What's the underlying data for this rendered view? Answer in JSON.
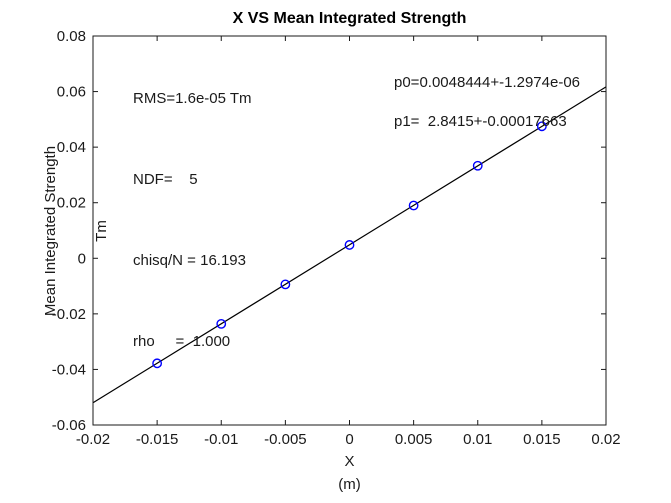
{
  "chart_data": {
    "type": "scatter",
    "title": "X VS Mean Integrated Strength",
    "xlabel": "X",
    "xlabel_unit": "(m)",
    "ylabel_line1": "Mean Integrated Strength",
    "ylabel_line2": "Tm",
    "xlim": [
      -0.02,
      0.02
    ],
    "ylim": [
      -0.06,
      0.08
    ],
    "xtick_values": [
      -0.02,
      -0.015,
      -0.01,
      -0.005,
      0,
      0.005,
      0.01,
      0.015,
      0.02
    ],
    "xtick_labels": [
      "-0.02",
      "-0.015",
      "-0.01",
      "-0.005",
      "0",
      "0.005",
      "0.01",
      "0.015",
      "0.02"
    ],
    "ytick_values": [
      -0.06,
      -0.04,
      -0.02,
      0,
      0.02,
      0.04,
      0.06,
      0.08
    ],
    "ytick_labels": [
      "-0.06",
      "-0.04",
      "-0.02",
      "0",
      "0.02",
      "0.04",
      "0.06",
      "0.08"
    ],
    "grid": false,
    "legend": false,
    "axis_color": "#1a1a1a",
    "background_color": "#ffffff",
    "series": [
      {
        "name": "measured-points",
        "marker": "open-circle",
        "marker_color": "#0000ff",
        "x": [
          -0.015,
          -0.01,
          -0.005,
          0,
          0.005,
          0.01,
          0.015
        ],
        "y": [
          -0.0378,
          -0.0236,
          -0.0094,
          0.0048,
          0.019,
          0.0333,
          0.0475
        ]
      }
    ],
    "fit_line": {
      "name": "linear-fit",
      "color": "#000000",
      "p0": 0.0048444,
      "p1": 2.8415,
      "x_start": -0.02,
      "x_end": 0.02
    },
    "annotations": {
      "stats_lines": [
        "RMS=1.6e-05 Tm",
        "NDF=    5",
        "chisq/N = 16.193",
        "rho     =  1.000"
      ],
      "fit_param_lines": [
        "p0=0.0048444+-1.2974e-06",
        "p1=  2.8415+-0.00017663"
      ]
    }
  }
}
